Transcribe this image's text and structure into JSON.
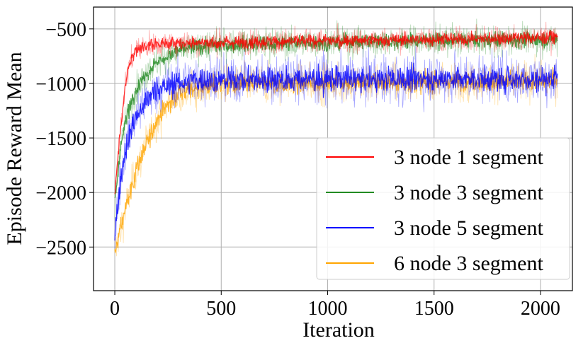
{
  "chart_data": {
    "type": "line",
    "title": "",
    "xlabel": "Iteration",
    "ylabel": "Episode Reward Mean",
    "xlim": [
      -100,
      2150
    ],
    "ylim": [
      -2900,
      -300
    ],
    "x_ticks": [
      0,
      500,
      1000,
      1500,
      2000
    ],
    "y_ticks": [
      -500,
      -1000,
      -1500,
      -2000,
      -2500
    ],
    "x_tick_labels": [
      "0",
      "500",
      "1000",
      "1500",
      "2000"
    ],
    "y_tick_labels": [
      "−500",
      "−1000",
      "−1500",
      "−2000",
      "−2500"
    ],
    "grid": true,
    "legend_position": "lower-right",
    "series": [
      {
        "name": "3 node 1 segment",
        "color": "#ff0000",
        "x": [
          0,
          25,
          50,
          75,
          100,
          150,
          200,
          300,
          500,
          800,
          1200,
          1600,
          2000,
          2080
        ],
        "values": [
          -2000,
          -1450,
          -1000,
          -780,
          -690,
          -650,
          -640,
          -630,
          -625,
          -615,
          -605,
          -595,
          -580,
          -575
        ]
      },
      {
        "name": "3 node 3 segment",
        "color": "#228b22",
        "x": [
          0,
          25,
          50,
          75,
          100,
          150,
          200,
          300,
          400,
          500,
          800,
          1200,
          1600,
          2000,
          2080
        ],
        "values": [
          -2100,
          -1600,
          -1350,
          -1180,
          -1060,
          -900,
          -800,
          -700,
          -660,
          -645,
          -630,
          -615,
          -605,
          -600,
          -600
        ]
      },
      {
        "name": "3 node 5 segment",
        "color": "#0000ff",
        "x": [
          0,
          25,
          50,
          75,
          100,
          150,
          200,
          300,
          400,
          500,
          800,
          1200,
          1600,
          2000,
          2080
        ],
        "values": [
          -2400,
          -1900,
          -1600,
          -1430,
          -1300,
          -1150,
          -1050,
          -990,
          -970,
          -965,
          -960,
          -960,
          -955,
          -960,
          -960
        ]
      },
      {
        "name": "6 node 3 segment",
        "color": "#ffa500",
        "x": [
          0,
          25,
          50,
          100,
          150,
          200,
          250,
          300,
          400,
          500,
          800,
          1200,
          1600,
          2000,
          2080
        ],
        "values": [
          -2550,
          -2350,
          -2150,
          -1800,
          -1550,
          -1330,
          -1190,
          -1100,
          -1030,
          -1010,
          -1000,
          -990,
          -985,
          -980,
          -975
        ]
      }
    ]
  }
}
